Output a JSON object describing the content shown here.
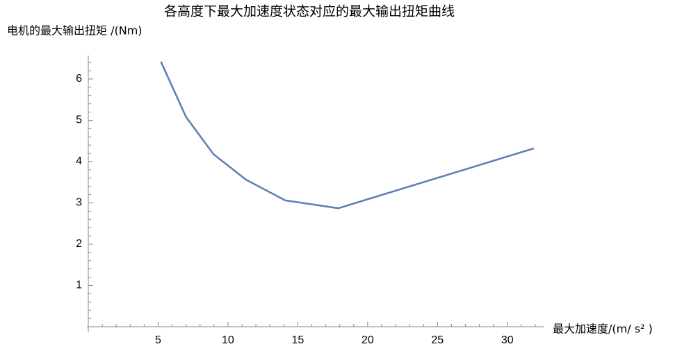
{
  "chart_data": {
    "type": "line",
    "title": "各高度下最大加速度状态对应的最大输出扭矩曲线",
    "ylabel": "电机的最大输出扭矩 /(Nm)",
    "xlabel": "最大加速度/(m/ s² )",
    "x": [
      5.2,
      7.0,
      8.96,
      11.3,
      14.1,
      17.9,
      31.9
    ],
    "series": [
      {
        "color": "#5e81b5",
        "values": [
          6.42,
          5.08,
          4.18,
          3.56,
          3.06,
          2.87,
          4.32
        ]
      }
    ],
    "xlim": [
      0,
      32.6
    ],
    "ylim": [
      0,
      6.57
    ],
    "xticks": [
      5,
      10,
      15,
      20,
      25,
      30
    ],
    "yticks": [
      1,
      2,
      3,
      4,
      5,
      6
    ],
    "xminorticks": [
      1,
      2,
      3,
      4,
      6,
      7,
      8,
      9,
      11,
      12,
      13,
      14,
      16,
      17,
      18,
      19,
      21,
      22,
      23,
      24,
      26,
      27,
      28,
      29,
      31,
      32
    ],
    "yminorticks": [
      0.2,
      0.4,
      0.6,
      0.8,
      1.2,
      1.4,
      1.6,
      1.8,
      2.2,
      2.4,
      2.6,
      2.8,
      3.2,
      3.4,
      3.6,
      3.8,
      4.2,
      4.4,
      4.6,
      4.8,
      5.2,
      5.4,
      5.6,
      5.8,
      6.2,
      6.4
    ]
  }
}
